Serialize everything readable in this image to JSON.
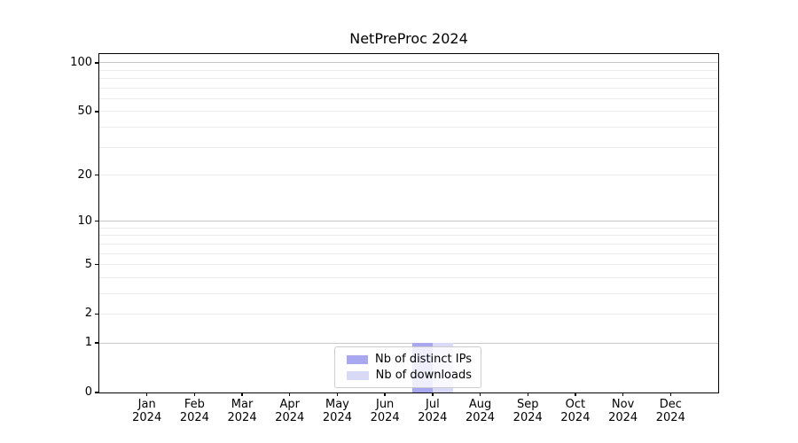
{
  "chart_data": {
    "type": "bar",
    "title": "NetPreProc 2024",
    "categories": [
      "Jan",
      "Feb",
      "Mar",
      "Apr",
      "May",
      "Jun",
      "Jul",
      "Aug",
      "Sep",
      "Oct",
      "Nov",
      "Dec"
    ],
    "category_year": "2024",
    "series": [
      {
        "name": "Nb of distinct IPs",
        "color": "#a8a8f0",
        "values": [
          0,
          0,
          0,
          0,
          0,
          0,
          1,
          0,
          0,
          0,
          0,
          0
        ]
      },
      {
        "name": "Nb of downloads",
        "color": "#d9d9f8",
        "values": [
          0,
          0,
          0,
          0,
          0,
          0,
          1,
          0,
          0,
          0,
          0,
          0
        ]
      }
    ],
    "xlabel": "",
    "ylabel": "",
    "yscale": "log1p",
    "ylim": [
      0,
      114
    ],
    "y_ticks": [
      0,
      1,
      2,
      5,
      10,
      20,
      50,
      100
    ],
    "y_major_gridlines": [
      1,
      10,
      100
    ],
    "y_minor_gridlines": [
      2,
      3,
      4,
      5,
      6,
      7,
      8,
      9,
      20,
      30,
      40,
      50,
      60,
      70,
      80,
      90
    ],
    "grid": true,
    "legend_position": "lower center",
    "colors": {
      "major_grid": "#c8c8c8",
      "minor_grid": "#ebebeb",
      "axis": "#000000",
      "legend_border": "#cccccc",
      "background": "#ffffff"
    }
  }
}
